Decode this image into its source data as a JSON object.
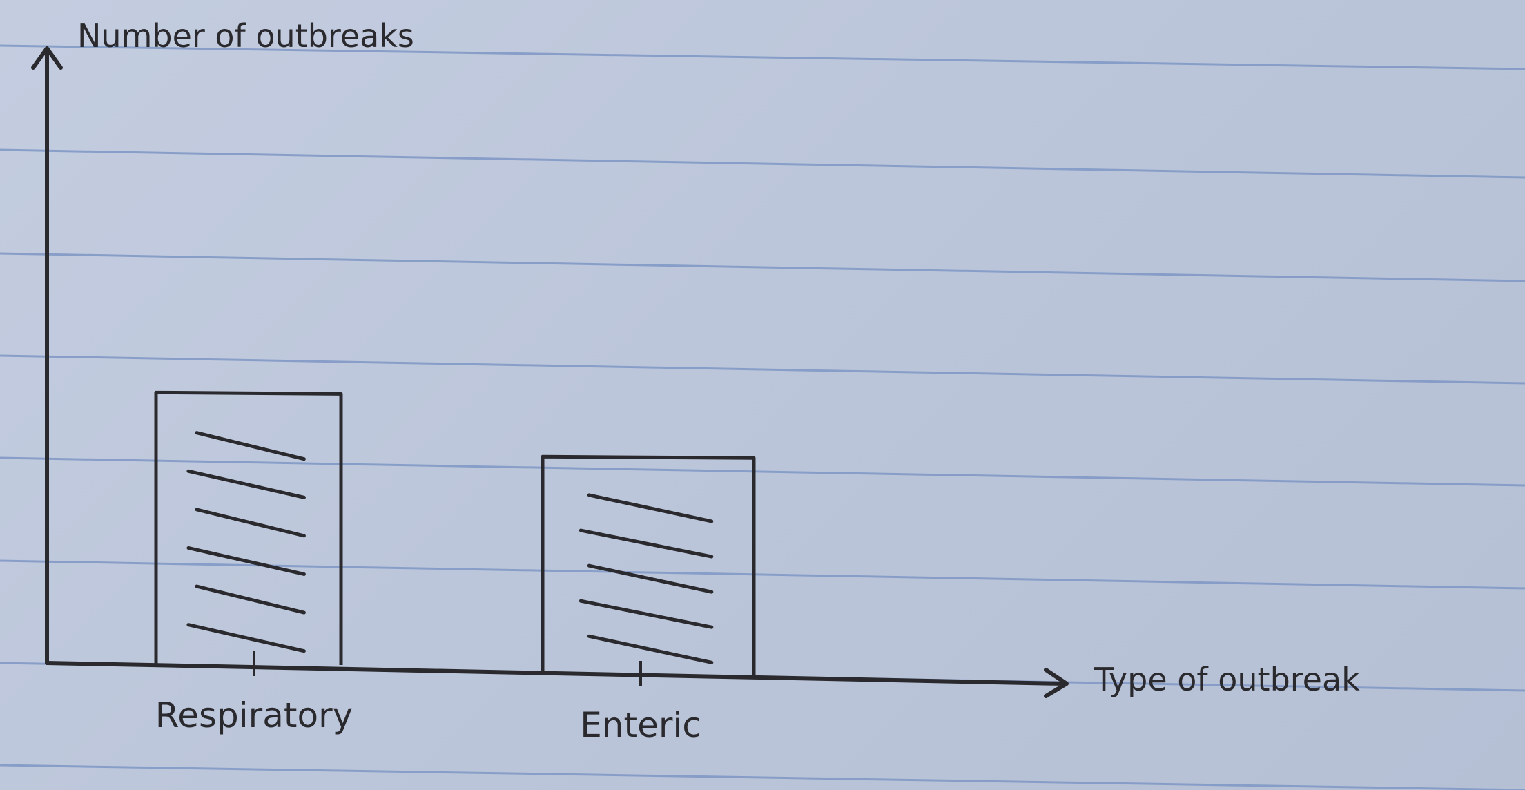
{
  "chart_data": {
    "type": "bar",
    "title": "",
    "xlabel": "Type of outbreak",
    "ylabel": "Number of outbreaks",
    "categories": [
      "Respiratory",
      "Enteric"
    ],
    "values": [
      4,
      3.2
    ],
    "ylim": [
      0,
      9
    ],
    "grid": false,
    "legend": "none",
    "bar_fill": "hatched",
    "colors": {
      "ink": "#2a2a2e",
      "paper": "#c0c9dc",
      "rule": "#7e97c4"
    }
  }
}
